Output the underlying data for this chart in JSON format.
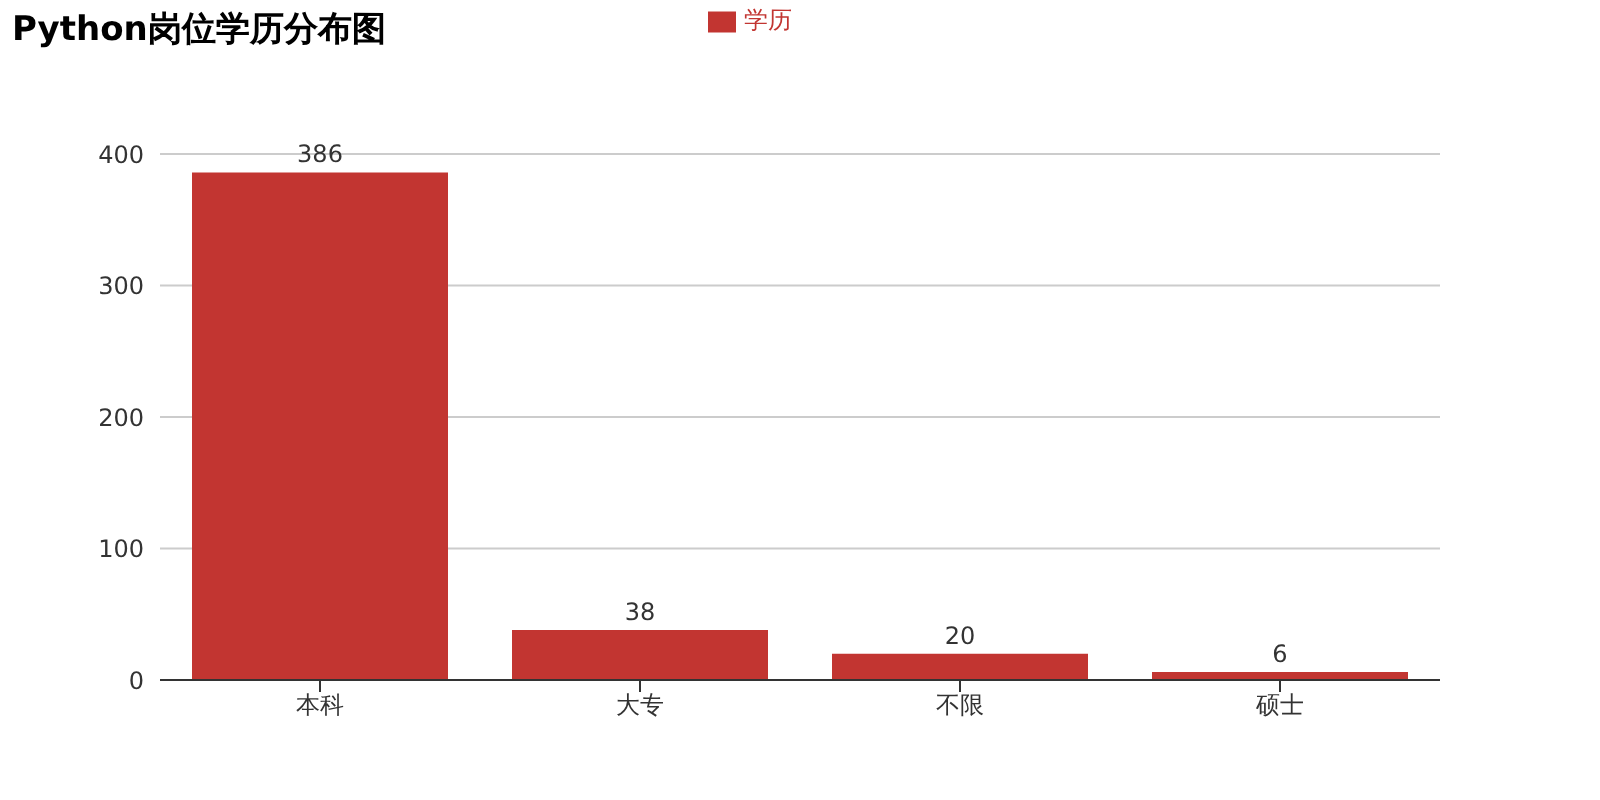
{
  "chart_data": {
    "type": "bar",
    "title": "Python岗位学历分布图",
    "categories": [
      "本科",
      "大专",
      "不限",
      "硕士"
    ],
    "series": [
      {
        "name": "学历",
        "color": "#c23531",
        "values": [
          386,
          38,
          20,
          6
        ]
      }
    ],
    "ylim": [
      0,
      400
    ],
    "yticks": [
      0,
      100,
      200,
      300,
      400
    ],
    "grid": "y",
    "legend": "top",
    "data_labels": true
  }
}
